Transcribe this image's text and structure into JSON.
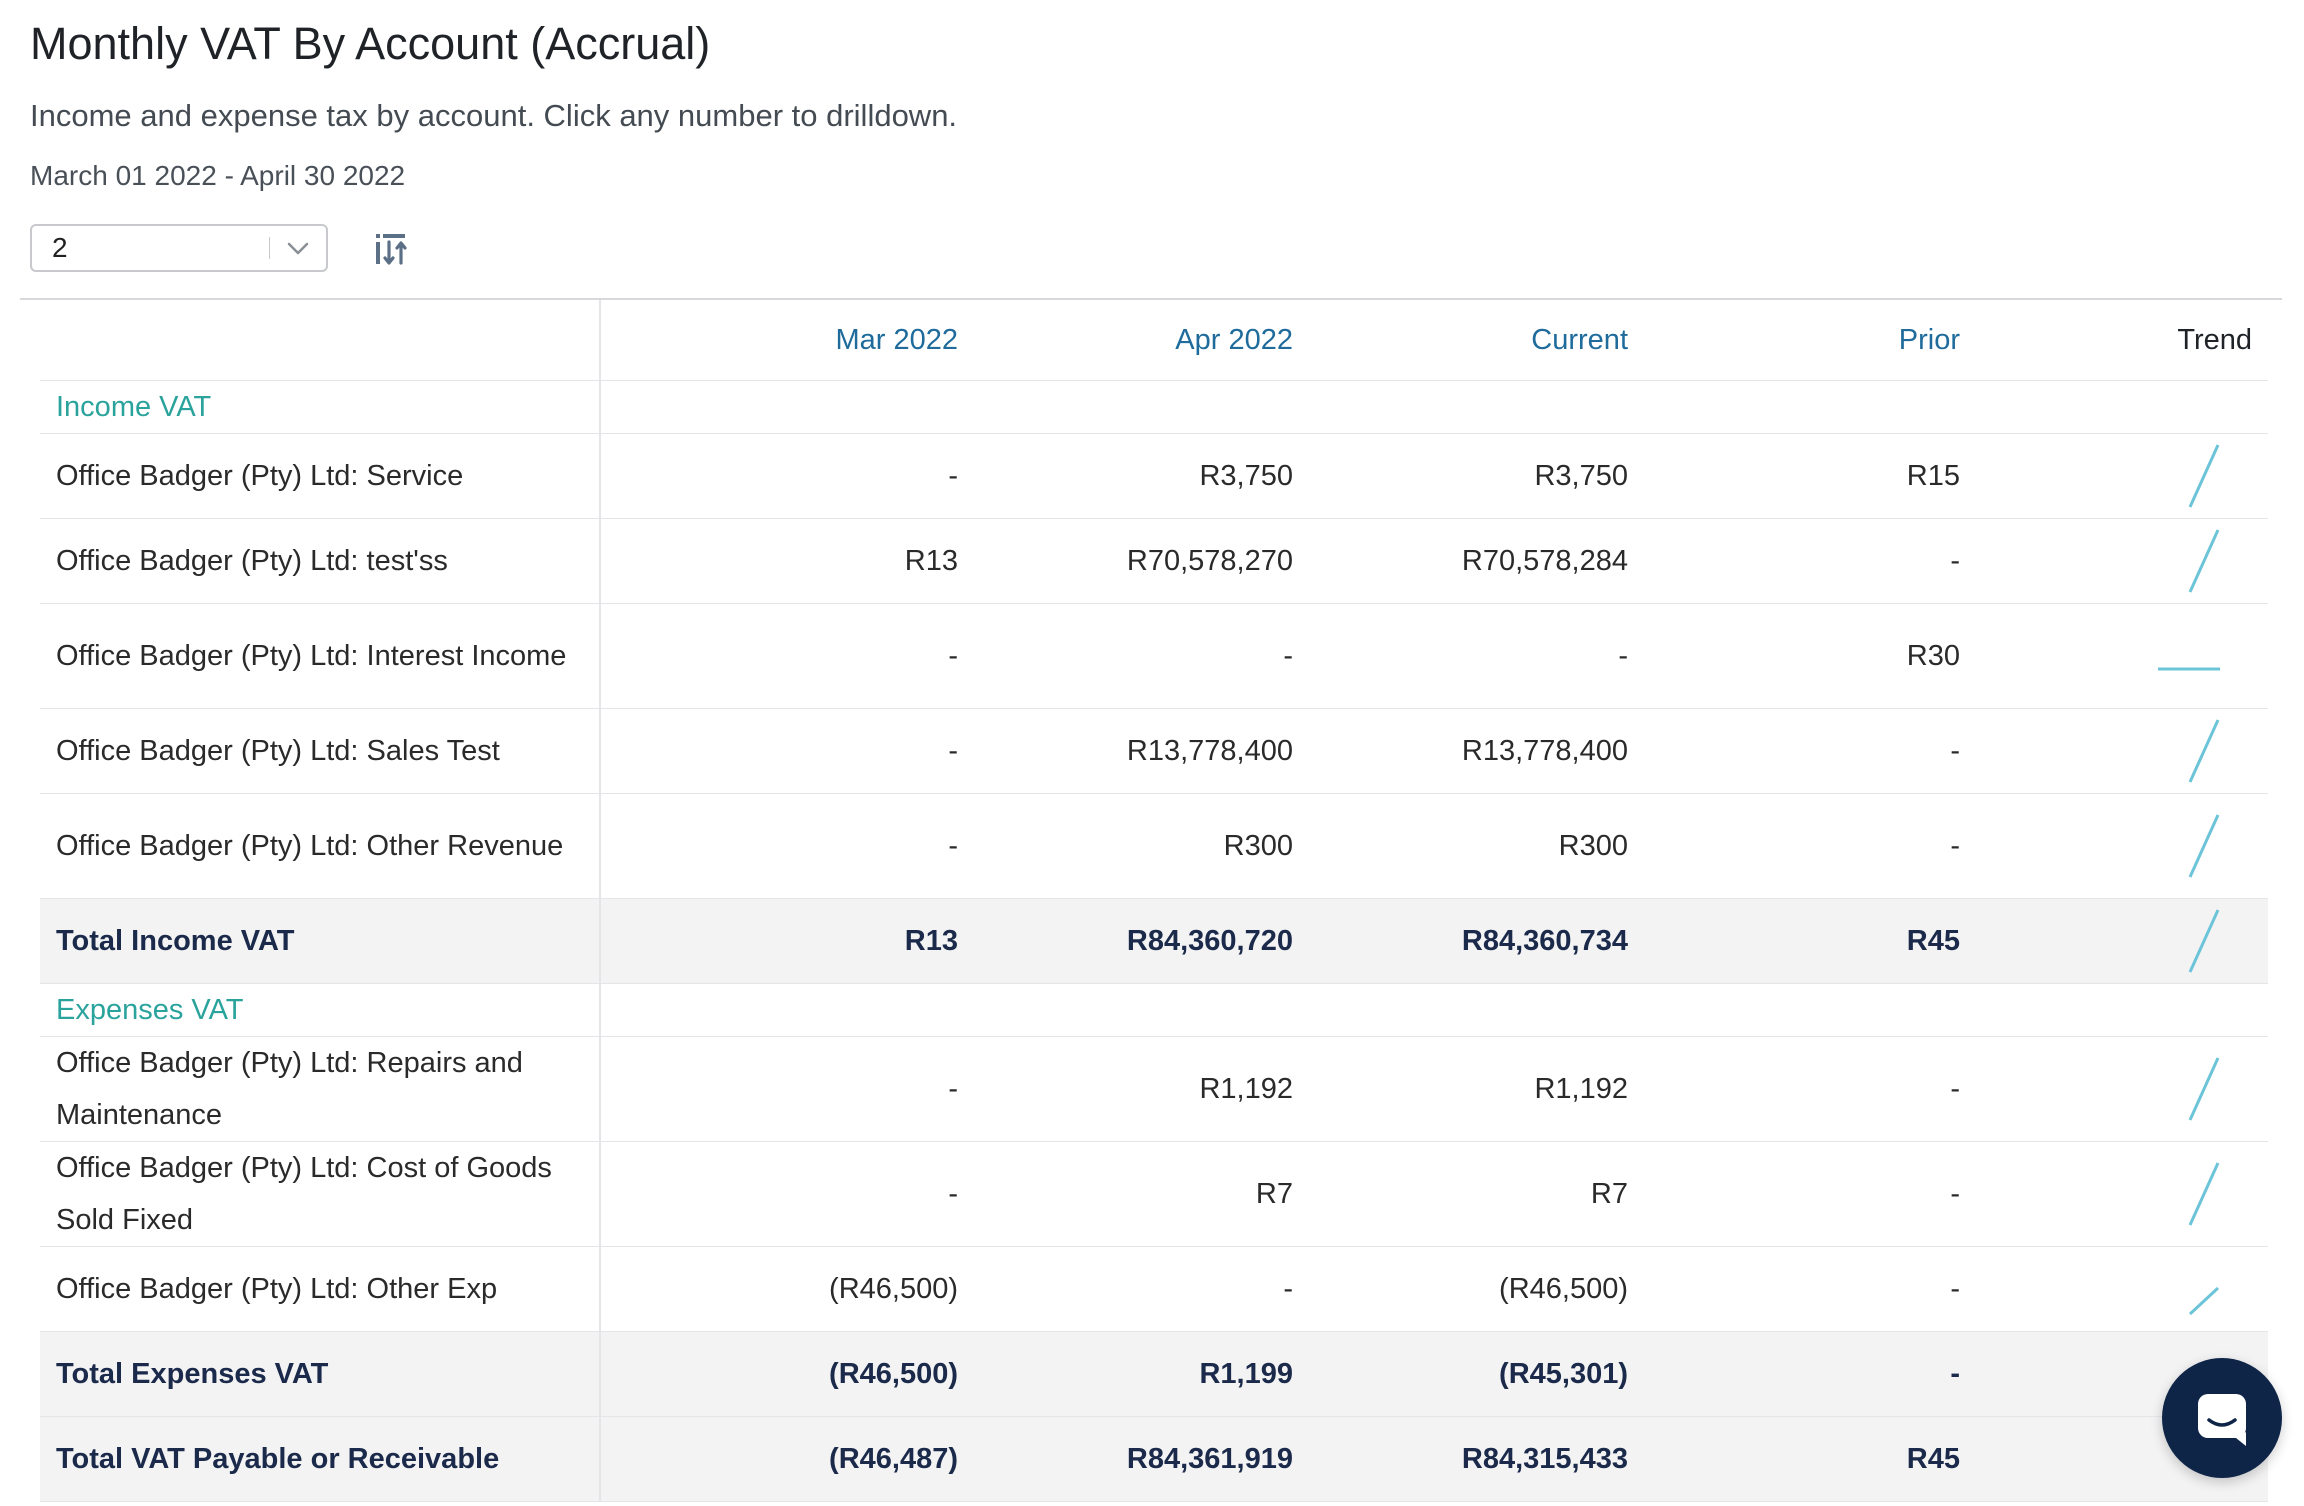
{
  "report": {
    "title": "Monthly VAT By Account (Accrual)",
    "subtitle": "Income and expense tax by account. Click any number to drilldown.",
    "date_range": "March 01 2022 - April 30 2022"
  },
  "controls": {
    "period_select_value": "2",
    "sort_icon": "sort-swap-icon",
    "chevron_icon": "chevron-down-icon"
  },
  "table": {
    "headers": {
      "name": "",
      "mar": "Mar 2022",
      "apr": "Apr 2022",
      "current": "Current",
      "prior": "Prior",
      "trend": "Trend"
    },
    "income_section": "Income VAT",
    "income_rows": [
      {
        "name": "Office Badger (Pty) Ltd: Service",
        "mar": "-",
        "apr": "R3,750",
        "current": "R3,750",
        "prior": "R15"
      },
      {
        "name": "Office Badger (Pty) Ltd: test'ss",
        "mar": "R13",
        "apr": "R70,578,270",
        "current": "R70,578,284",
        "prior": "-"
      },
      {
        "name": "Office Badger (Pty) Ltd: Interest Income",
        "mar": "-",
        "apr": "-",
        "current": "-",
        "prior": "R30"
      },
      {
        "name": "Office Badger (Pty) Ltd: Sales Test",
        "mar": "-",
        "apr": "R13,778,400",
        "current": "R13,778,400",
        "prior": "-"
      },
      {
        "name": "Office Badger (Pty) Ltd: Other Revenue",
        "mar": "-",
        "apr": "R300",
        "current": "R300",
        "prior": "-"
      }
    ],
    "income_total": {
      "name": "Total Income VAT",
      "mar": "R13",
      "apr": "R84,360,720",
      "current": "R84,360,734",
      "prior": "R45"
    },
    "expense_section": "Expenses VAT",
    "expense_rows": [
      {
        "name": "Office Badger (Pty) Ltd: Repairs and Maintenance",
        "mar": "-",
        "apr": "R1,192",
        "current": "R1,192",
        "prior": "-"
      },
      {
        "name": "Office Badger (Pty) Ltd: Cost of Goods Sold Fixed",
        "mar": "-",
        "apr": "R7",
        "current": "R7",
        "prior": "-"
      },
      {
        "name": "Office Badger (Pty) Ltd: Other Exp",
        "mar": "(R46,500)",
        "apr": "-",
        "current": "(R46,500)",
        "prior": "-"
      }
    ],
    "expense_total": {
      "name": "Total Expenses VAT",
      "mar": "(R46,500)",
      "apr": "R1,199",
      "current": "(R45,301)",
      "prior": "-"
    },
    "grand_total": {
      "name": "Total VAT Payable or Receivable",
      "mar": "(R46,487)",
      "apr": "R84,361,919",
      "current": "R84,315,433",
      "prior": "R45"
    }
  },
  "colors": {
    "accent_teal": "#2aa39c",
    "header_blue": "#1e6b9c",
    "total_navy": "#1b2a4a",
    "sparkline": "#6cc4d8",
    "chat_bg": "#0e2548"
  },
  "chat": {
    "icon": "chat-bubble-icon"
  }
}
